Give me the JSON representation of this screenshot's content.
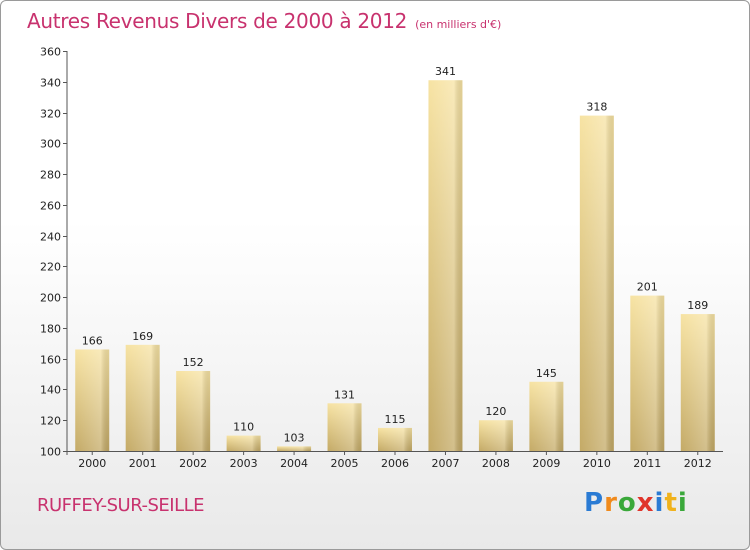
{
  "chart_data": {
    "type": "bar",
    "title": "Autres Revenus Divers de 2000 à 2012",
    "subtitle": "(en milliers d'€)",
    "categories": [
      "2000",
      "2001",
      "2002",
      "2003",
      "2004",
      "2005",
      "2006",
      "2007",
      "2008",
      "2009",
      "2010",
      "2011",
      "2012"
    ],
    "values": [
      166,
      169,
      152,
      110,
      103,
      131,
      115,
      341,
      120,
      145,
      318,
      201,
      189
    ],
    "ylim": [
      100,
      360
    ],
    "yticks": [
      100,
      120,
      140,
      160,
      180,
      200,
      220,
      240,
      260,
      280,
      300,
      320,
      340,
      360
    ],
    "grid": false,
    "colors": {
      "bar_light": "#f7e3a3",
      "bar_dark": "#c4aa66",
      "title": "#c8326e"
    }
  },
  "footer": {
    "commune": "RUFFEY-SUR-SEILLE",
    "logo_letters": [
      "P",
      "r",
      "o",
      "x",
      "i",
      "t",
      "i"
    ],
    "logo_colors": [
      "#2a7bd4",
      "#f08a1c",
      "#3aa83a",
      "#e0342a",
      "#2a7bd4",
      "#f0b21c",
      "#3aa83a"
    ]
  }
}
